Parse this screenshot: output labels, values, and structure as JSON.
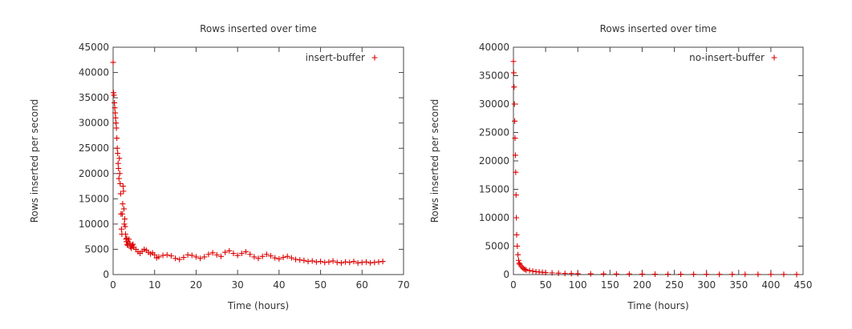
{
  "chart_data": [
    {
      "type": "scatter",
      "title": "Rows inserted over time",
      "xlabel": "Time (hours)",
      "ylabel": "Rows inserted per second",
      "xlim": [
        0,
        70
      ],
      "ylim": [
        0,
        45000
      ],
      "xticks": [
        0,
        10,
        20,
        30,
        40,
        50,
        60,
        70
      ],
      "yticks": [
        0,
        5000,
        10000,
        15000,
        20000,
        25000,
        30000,
        35000,
        40000,
        45000
      ],
      "legend": {
        "label": "insert-buffer",
        "position": "top-right"
      },
      "marker_color": "#dd0000",
      "series": [
        {
          "name": "insert-buffer",
          "x": [
            0.0,
            0.1,
            0.2,
            0.3,
            0.4,
            0.5,
            0.6,
            0.7,
            0.8,
            0.9,
            1.0,
            1.1,
            1.2,
            1.3,
            1.4,
            1.5,
            1.6,
            1.7,
            1.8,
            1.9,
            2.0,
            2.1,
            2.2,
            2.3,
            2.4,
            2.5,
            2.6,
            2.7,
            2.8,
            2.9,
            3.0,
            3.1,
            3.2,
            3.3,
            3.4,
            3.5,
            3.6,
            3.8,
            4.0,
            4.2,
            4.4,
            4.6,
            4.8,
            5.0,
            5.5,
            6.0,
            6.5,
            7.0,
            7.5,
            8.0,
            8.5,
            9.0,
            9.5,
            10.0,
            10.5,
            11.0,
            12.0,
            13.0,
            14.0,
            15.0,
            16.0,
            17.0,
            18.0,
            19.0,
            20.0,
            21.0,
            22.0,
            23.0,
            24.0,
            25.0,
            26.0,
            27.0,
            28.0,
            29.0,
            30.0,
            31.0,
            32.0,
            33.0,
            34.0,
            35.0,
            36.0,
            37.0,
            38.0,
            39.0,
            40.0,
            41.0,
            42.0,
            43.0,
            44.0,
            45.0,
            46.0,
            47.0,
            48.0,
            49.0,
            50.0,
            51.0,
            52.0,
            53.0,
            54.0,
            55.0,
            56.0,
            57.0,
            58.0,
            59.0,
            60.0,
            61.0,
            62.0,
            63.0,
            64.0,
            65.0
          ],
          "y": [
            42000,
            36000,
            35500,
            34000,
            33000,
            32000,
            31000,
            30000,
            29000,
            27000,
            25000,
            24000,
            22000,
            21000,
            19000,
            23000,
            20000,
            18000,
            16000,
            12000,
            9000,
            8000,
            12000,
            14000,
            17500,
            16500,
            13000,
            10000,
            11000,
            9500,
            8000,
            7000,
            6500,
            7200,
            6000,
            5800,
            6500,
            7000,
            6200,
            5500,
            5200,
            5800,
            6000,
            5400,
            5000,
            4500,
            4200,
            4600,
            5000,
            4800,
            4400,
            4100,
            4300,
            3900,
            3300,
            3500,
            3800,
            3900,
            3700,
            3200,
            3000,
            3400,
            3900,
            3800,
            3500,
            3200,
            3500,
            4000,
            4300,
            3900,
            3600,
            4400,
            4700,
            4200,
            3800,
            4200,
            4500,
            4000,
            3500,
            3200,
            3600,
            4000,
            3700,
            3300,
            3100,
            3400,
            3600,
            3300,
            3000,
            2900,
            2800,
            2600,
            2700,
            2500,
            2600,
            2400,
            2500,
            2700,
            2400,
            2300,
            2500,
            2400,
            2600,
            2300,
            2400,
            2500,
            2300,
            2400,
            2500,
            2600
          ]
        }
      ]
    },
    {
      "type": "scatter",
      "title": "Rows inserted over time",
      "xlabel": "Time (hours)",
      "ylabel": "Rows inserted per second",
      "xlim": [
        0,
        450
      ],
      "ylim": [
        0,
        40000
      ],
      "xticks": [
        0,
        50,
        100,
        150,
        200,
        250,
        300,
        350,
        400,
        450
      ],
      "yticks": [
        0,
        5000,
        10000,
        15000,
        20000,
        25000,
        30000,
        35000,
        40000
      ],
      "legend": {
        "label": "no-insert-buffer",
        "position": "top-right"
      },
      "marker_color": "#dd0000",
      "series": [
        {
          "name": "no-insert-buffer",
          "x": [
            0,
            0.5,
            1,
            1.5,
            2,
            2.5,
            3,
            3.5,
            4,
            4.5,
            5,
            6,
            7,
            8,
            9,
            10,
            12,
            14,
            16,
            18,
            20,
            25,
            30,
            35,
            40,
            45,
            50,
            60,
            70,
            80,
            90,
            100,
            120,
            140,
            160,
            180,
            200,
            220,
            240,
            260,
            280,
            300,
            320,
            340,
            360,
            380,
            400,
            420,
            440
          ],
          "y": [
            37500,
            35500,
            33000,
            30000,
            27000,
            24000,
            21000,
            18000,
            14000,
            10000,
            7000,
            5000,
            3500,
            2500,
            2000,
            1800,
            1500,
            1200,
            1000,
            900,
            800,
            700,
            600,
            500,
            450,
            400,
            350,
            300,
            250,
            200,
            180,
            150,
            130,
            110,
            100,
            90,
            80,
            70,
            60,
            55,
            50,
            45,
            40,
            38,
            35,
            32,
            30,
            28,
            25
          ]
        }
      ]
    }
  ]
}
